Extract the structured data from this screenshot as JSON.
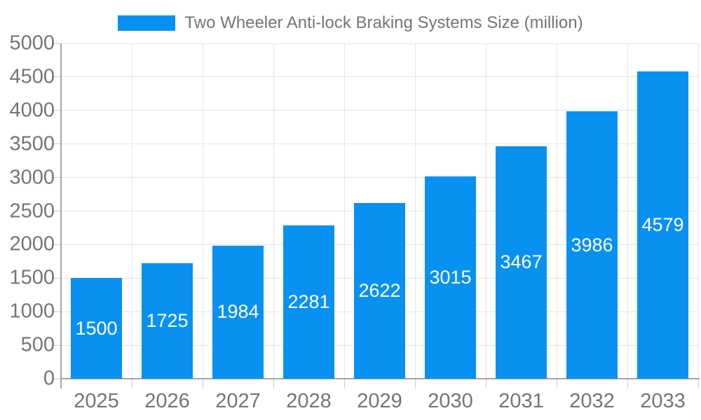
{
  "legend": {
    "series_label": "Two Wheeler Anti-lock Braking Systems Size (million)"
  },
  "chart_data": {
    "type": "bar",
    "title": "Two Wheeler Anti-lock Braking Systems Size (million)",
    "categories": [
      "2025",
      "2026",
      "2027",
      "2028",
      "2029",
      "2030",
      "2031",
      "2032",
      "2033"
    ],
    "values": [
      1500,
      1725,
      1984,
      2281,
      2622,
      3015,
      3467,
      3986,
      4579
    ],
    "value_labels": [
      "1500",
      "1725",
      "1984",
      "2281",
      "2622",
      "3015",
      "3467",
      "3986",
      "4579"
    ],
    "xlabel": "",
    "ylabel": "",
    "ylim": [
      0,
      5000
    ],
    "ytick_step": 500,
    "ytick_labels": [
      "0",
      "500",
      "1000",
      "1500",
      "2000",
      "2500",
      "3000",
      "3500",
      "4000",
      "4500",
      "5000"
    ],
    "grid": true,
    "legend_position": "top",
    "colors": {
      "bar": "#0991f2",
      "value_label": "#ffffff",
      "axis_label": "#757575",
      "legend_label": "#757575",
      "gridline": "#e6e6e6",
      "axis_line": "#a6a6a6",
      "tick": "#cccccc",
      "background": "#ffffff"
    }
  }
}
